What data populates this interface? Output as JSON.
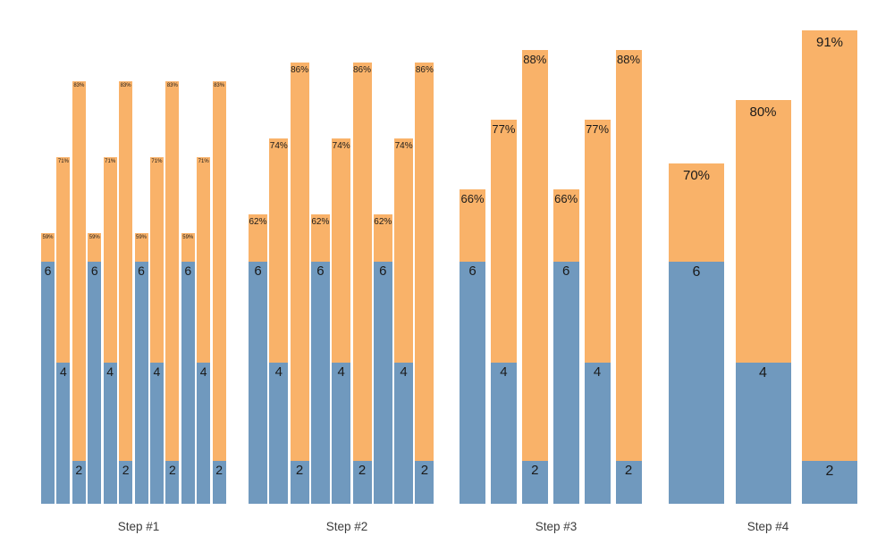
{
  "chart_data": {
    "type": "bar",
    "subtype": "grouped-stacked-columns",
    "title": "",
    "xlabel": "",
    "ylabel": "",
    "legend": "none",
    "grid": "off",
    "background": "#ffffff",
    "categories": [
      "Step #1",
      "Step #2",
      "Step #3",
      "Step #4"
    ],
    "groups": [
      {
        "label": "Step #1",
        "repeat": 4,
        "bars": [
          {
            "value": 6,
            "percent": 59
          },
          {
            "value": 4,
            "percent": 71
          },
          {
            "value": 2,
            "percent": 83
          }
        ]
      },
      {
        "label": "Step #2",
        "repeat": 3,
        "bars": [
          {
            "value": 6,
            "percent": 62
          },
          {
            "value": 4,
            "percent": 74
          },
          {
            "value": 2,
            "percent": 86
          }
        ]
      },
      {
        "label": "Step #3",
        "repeat": 2,
        "bars": [
          {
            "value": 6,
            "percent": 66
          },
          {
            "value": 4,
            "percent": 77
          },
          {
            "value": 2,
            "percent": 88
          }
        ]
      },
      {
        "label": "Step #4",
        "repeat": 1,
        "bars": [
          {
            "value": 6,
            "percent": 70
          },
          {
            "value": 4,
            "percent": 80
          },
          {
            "value": 2,
            "percent": 91
          }
        ]
      }
    ],
    "value_label_format": "{value}",
    "percent_label_format": "{percent}%",
    "colors": {
      "base_segment": "#7099be",
      "top_segment": "#f9b269",
      "bar_label_text": "#1a1a1a",
      "group_label_text": "#3c3c3c"
    }
  }
}
